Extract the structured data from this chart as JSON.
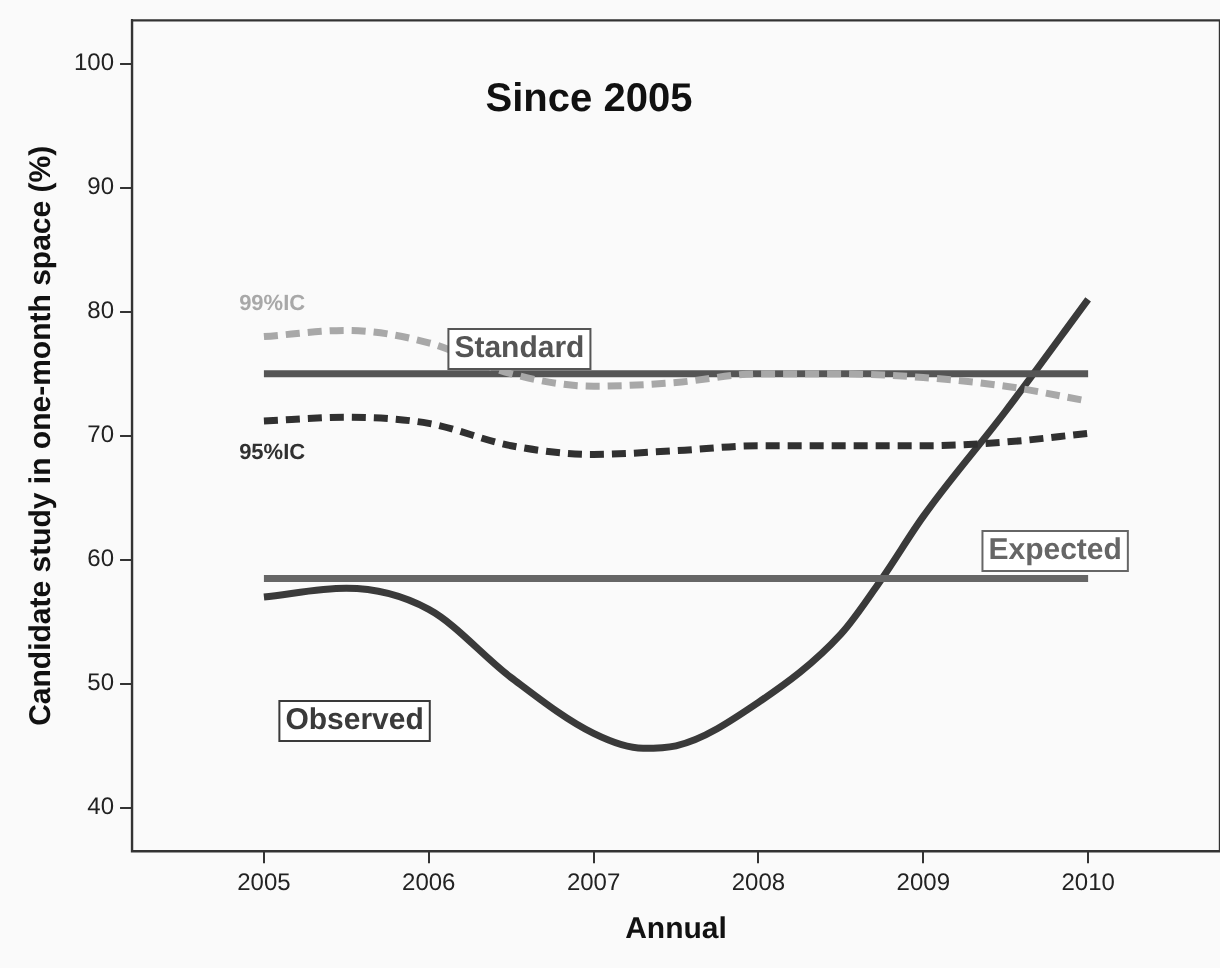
{
  "chart_data": {
    "type": "line",
    "title": "Since 2005",
    "xlabel": "Annual",
    "ylabel": "Candidate study in one-month space (%)",
    "xlim": [
      2004.2,
      2010.8
    ],
    "xticks": [
      2005,
      2006,
      2007,
      2008,
      2009,
      2010
    ],
    "ylim": [
      36.5,
      103.5
    ],
    "yticks": [
      40,
      50,
      60,
      70,
      80,
      90,
      100
    ],
    "grid": false,
    "legend": false,
    "marker": "none",
    "series": [
      {
        "name": "99%IC",
        "color": "#a8a8a8",
        "line_style": "dashed",
        "x": [
          2005,
          2005.5,
          2006,
          2006.5,
          2007,
          2007.5,
          2008,
          2008.5,
          2009,
          2009.5,
          2010
        ],
        "values": [
          78,
          78.5,
          77.5,
          75,
          74,
          74.3,
          75,
          75,
          74.7,
          74,
          72.8
        ]
      },
      {
        "name": "Standard",
        "color": "#555555",
        "line_style": "solid",
        "x": [
          2005,
          2010
        ],
        "values": [
          75,
          75
        ]
      },
      {
        "name": "95%IC",
        "color": "#303030",
        "line_style": "dashed",
        "x": [
          2005,
          2005.5,
          2006,
          2006.5,
          2007,
          2007.5,
          2008,
          2008.5,
          2009,
          2009.5,
          2010
        ],
        "values": [
          71.2,
          71.5,
          71,
          69.2,
          68.5,
          68.8,
          69.2,
          69.2,
          69.2,
          69.5,
          70.2
        ]
      },
      {
        "name": "Expected",
        "color": "#666666",
        "line_style": "solid",
        "x": [
          2005,
          2010
        ],
        "values": [
          58.5,
          58.5
        ]
      },
      {
        "name": "Observed",
        "color": "#3a3a3a",
        "line_style": "solid",
        "x": [
          2005,
          2005.5,
          2006,
          2006.5,
          2007,
          2007.3,
          2007.5,
          2008,
          2008.5,
          2008.75,
          2009,
          2009.5,
          2010
        ],
        "values": [
          57,
          57.7,
          56,
          50.5,
          46,
          44.8,
          45,
          48.5,
          54,
          58.5,
          63.5,
          72,
          81
        ]
      }
    ]
  }
}
